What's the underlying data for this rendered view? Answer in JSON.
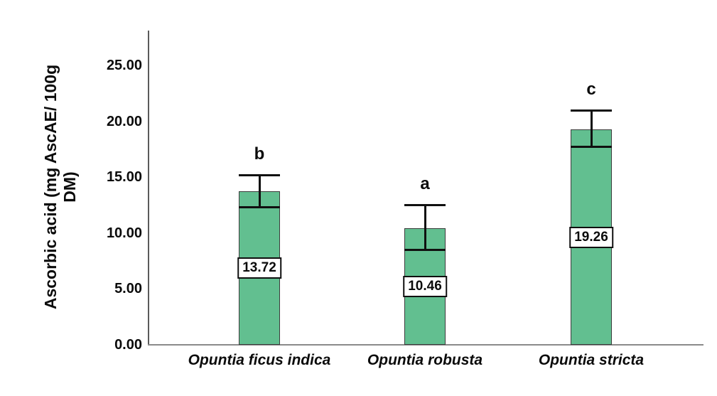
{
  "chart_data": {
    "type": "bar",
    "title": "",
    "xlabel": "",
    "ylabel": "Ascorbic acid (mg AscAE/ 100g DM)",
    "ylabel_line1": "Ascorbic acid (mg AscAE/ 100g",
    "ylabel_line2": "DM)",
    "categories": [
      "Opuntia ficus indica",
      "Opuntia robusta",
      "Opuntia stricta"
    ],
    "values": [
      13.72,
      10.46,
      19.26
    ],
    "value_labels": [
      "13.72",
      "10.46",
      "19.26"
    ],
    "significance_letters": [
      "b",
      "a",
      "c"
    ],
    "error_upper": [
      15.3,
      12.6,
      21.1
    ],
    "error_lower": [
      12.4,
      8.6,
      17.8
    ],
    "yticks": [
      "25.00",
      "20.00",
      "15.00",
      "10.00",
      "5.00",
      "0.00"
    ],
    "ytick_values": [
      25,
      20,
      15,
      10,
      5,
      0
    ],
    "ylim": [
      0,
      28.2
    ],
    "grid": false,
    "legend": false,
    "bar_color": "#62bf90",
    "bar_border_color": "#3c3c3c",
    "error_bar_color": "#101010",
    "y_axis_color": "#5a5a5a",
    "x_axis_color": "#8a8a8a",
    "text_color": "#0b0b0b",
    "background_color": "#ffffff"
  }
}
